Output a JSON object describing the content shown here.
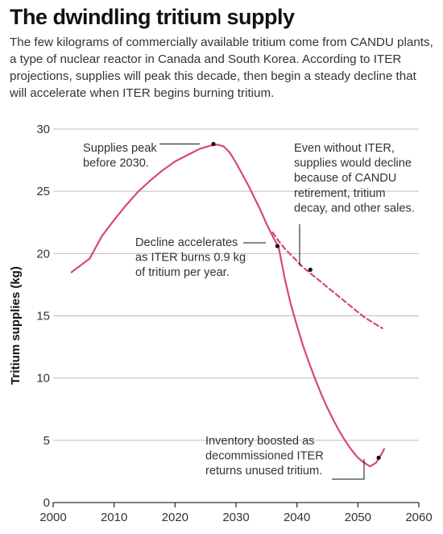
{
  "chart_data": {
    "type": "line",
    "title": "The dwindling tritium supply",
    "subtitle": "The few kilograms of commercially available tritium come from CANDU plants, a type of nuclear reactor in Canada and South Korea. According to ITER projections, supplies will peak this decade, then begin a steady decline that will accelerate when ITER begins burning tritium.",
    "xlabel": "",
    "ylabel": "Tritium supplies (kg)",
    "xlim": [
      2000,
      2060
    ],
    "ylim": [
      0,
      30
    ],
    "xticks": [
      2000,
      2010,
      2020,
      2030,
      2040,
      2050,
      2060
    ],
    "yticks": [
      0,
      5,
      10,
      15,
      20,
      25,
      30
    ],
    "grid": true,
    "legend": "none",
    "colors": {
      "series": "#d9467a",
      "grid": "#bdbdbd",
      "axis": "#333333",
      "marker": "#111111"
    },
    "series": [
      {
        "style": "solid",
        "x": [
          2003,
          2006,
          2008,
          2010,
          2012,
          2014,
          2016,
          2018,
          2020,
          2022,
          2024,
          2026,
          2027,
          2028,
          2029,
          2030,
          2031,
          2032,
          2033,
          2034,
          2035,
          2036,
          2037,
          2038,
          2039,
          2040,
          2041,
          2042,
          2043,
          2044,
          2045,
          2046,
          2047,
          2048,
          2049,
          2050,
          2051,
          2052,
          2053,
          2053.5,
          2054,
          2054.3
        ],
        "y": [
          18.5,
          19.6,
          21.4,
          22.7,
          23.9,
          25.0,
          25.9,
          26.7,
          27.4,
          27.9,
          28.4,
          28.7,
          28.75,
          28.6,
          28.1,
          27.3,
          26.4,
          25.5,
          24.5,
          23.5,
          22.4,
          21.4,
          20.5,
          18.0,
          15.9,
          14.2,
          12.6,
          11.2,
          9.9,
          8.7,
          7.6,
          6.6,
          5.7,
          4.9,
          4.2,
          3.6,
          3.2,
          2.9,
          3.2,
          3.6,
          4.0,
          4.3
        ]
      },
      {
        "style": "dashed",
        "x": [
          2036,
          2037,
          2038,
          2039,
          2040,
          2041,
          2042,
          2043,
          2044,
          2045,
          2046,
          2047,
          2048,
          2049,
          2050,
          2051,
          2052,
          2053,
          2054
        ],
        "y": [
          21.7,
          21.0,
          20.4,
          19.9,
          19.4,
          18.9,
          18.5,
          18.1,
          17.7,
          17.3,
          16.9,
          16.5,
          16.1,
          15.7,
          15.3,
          14.9,
          14.6,
          14.3,
          14.0
        ]
      }
    ],
    "annotations": [
      {
        "lines": [
          "Supplies peak",
          "before 2030."
        ],
        "point": [
          2026.3,
          28.8
        ]
      },
      {
        "lines": [
          "Even without ITER,",
          "supplies would decline",
          "because of CANDU",
          "retirement, tritium",
          "decay, and other sales."
        ],
        "point": [
          2042.2,
          18.7
        ]
      },
      {
        "lines": [
          "Decline accelerates",
          "as ITER burns 0.9 kg",
          "of tritium per year."
        ],
        "point": [
          2036.8,
          20.6
        ]
      },
      {
        "lines": [
          "Inventory boosted as",
          "decommissioned ITER",
          "returns unused tritium."
        ],
        "point": [
          2053.4,
          3.6
        ]
      }
    ]
  }
}
